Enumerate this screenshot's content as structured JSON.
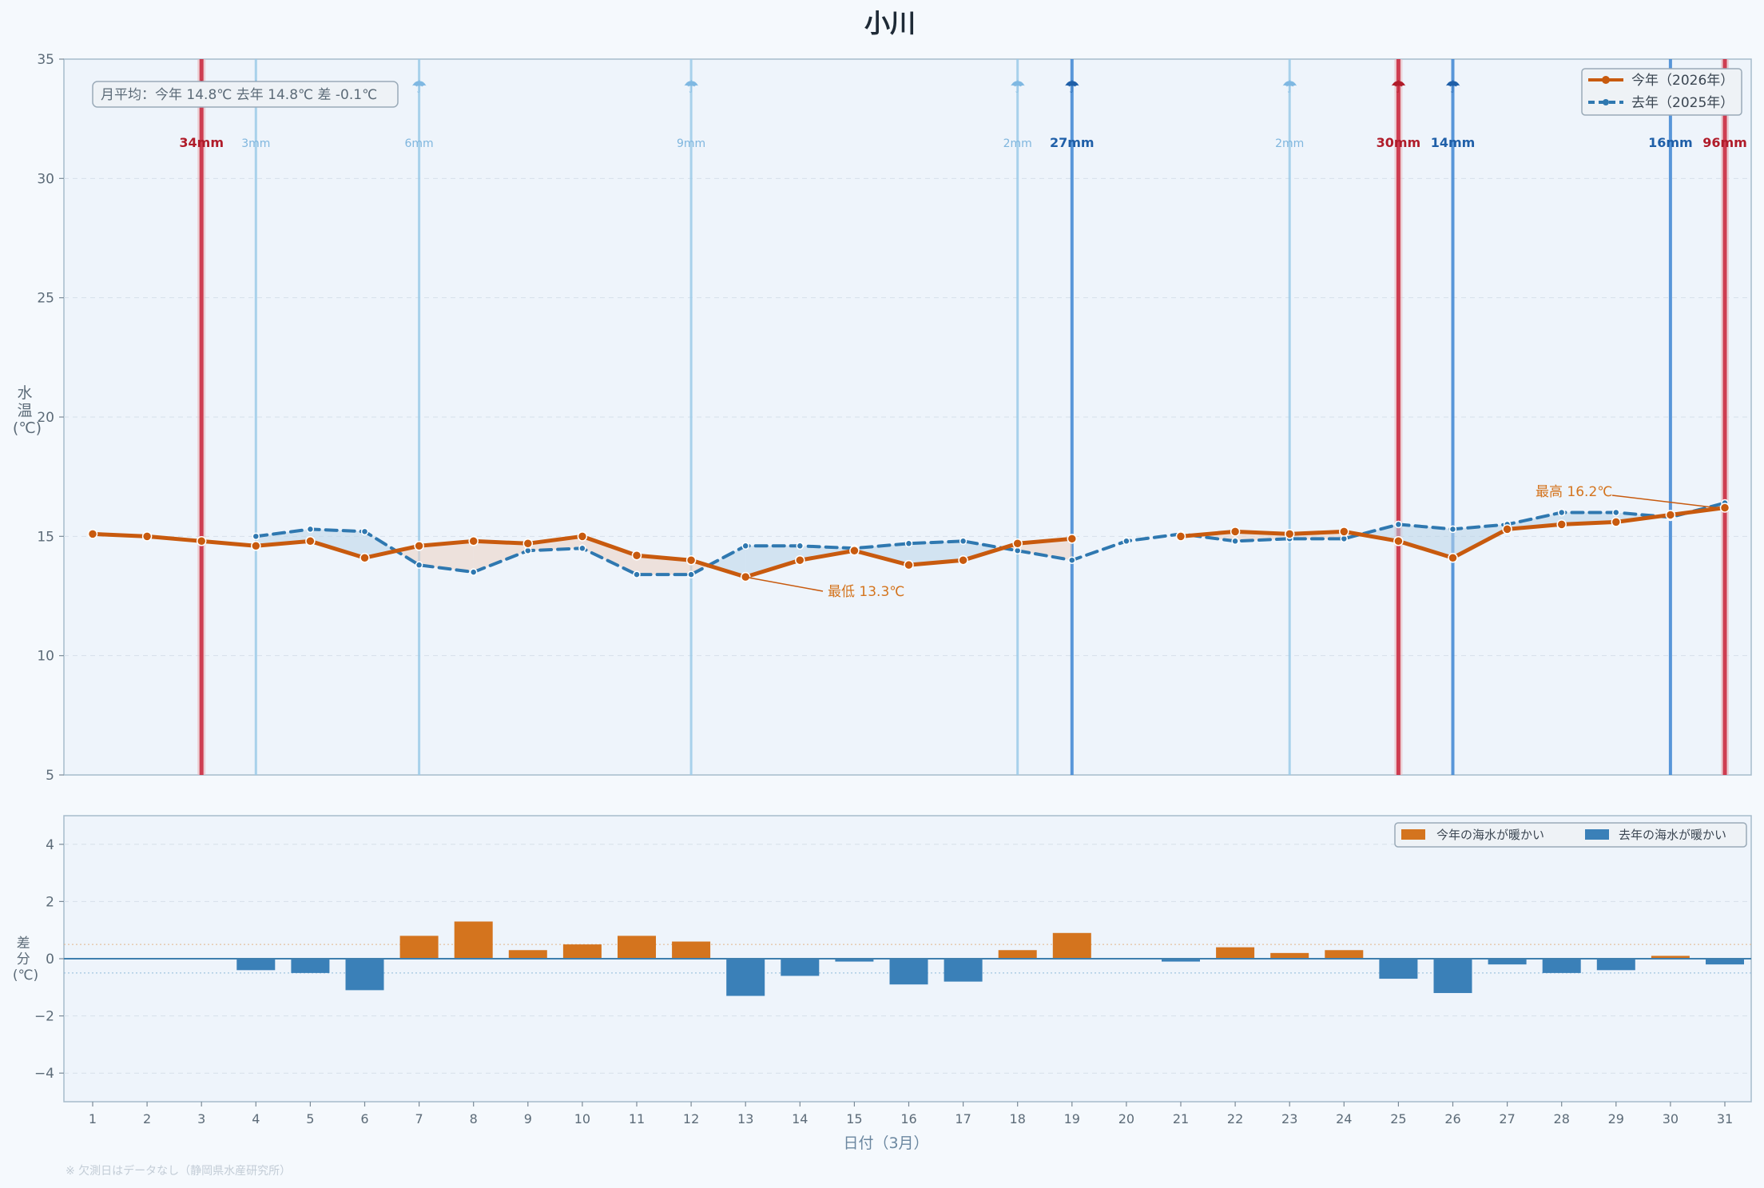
{
  "chart_data": [
    {
      "type": "line",
      "title": "小川",
      "ylabel": "水温(℃)",
      "ylim": [
        5,
        35
      ],
      "yticks": [
        5,
        10,
        15,
        20,
        25,
        30,
        35
      ],
      "x": [
        1,
        2,
        3,
        4,
        5,
        6,
        7,
        8,
        9,
        10,
        11,
        12,
        13,
        14,
        15,
        16,
        17,
        18,
        19,
        20,
        21,
        22,
        23,
        24,
        25,
        26,
        27,
        28,
        29,
        30,
        31
      ],
      "series": [
        {
          "name": "今年（2026年）",
          "color": "#c85a0e",
          "values": [
            15.1,
            15.0,
            14.8,
            14.6,
            14.8,
            14.1,
            14.6,
            14.8,
            14.7,
            15.0,
            14.2,
            14.0,
            13.3,
            14.0,
            14.4,
            13.8,
            14.0,
            14.7,
            14.9,
            null,
            15.0,
            15.2,
            15.1,
            15.2,
            14.8,
            14.1,
            15.3,
            15.5,
            15.6,
            15.9,
            16.2
          ]
        },
        {
          "name": "去年（2025年）",
          "color": "#2f78b0",
          "values": [
            null,
            null,
            null,
            15.0,
            15.3,
            15.2,
            13.8,
            13.5,
            14.4,
            14.5,
            13.4,
            13.4,
            14.6,
            14.6,
            14.5,
            14.7,
            14.8,
            14.4,
            14.0,
            14.8,
            15.1,
            14.8,
            14.9,
            14.9,
            15.5,
            15.3,
            15.5,
            16.0,
            16.0,
            15.8,
            16.4
          ]
        }
      ],
      "rain_events": [
        {
          "day": 3,
          "label": "34mm",
          "year": "今年",
          "heavy": true
        },
        {
          "day": 4,
          "label": "3mm",
          "year": "去年",
          "heavy": false
        },
        {
          "day": 7,
          "label": "6mm",
          "year": "去年",
          "heavy": false
        },
        {
          "day": 12,
          "label": "9mm",
          "year": "去年",
          "heavy": false
        },
        {
          "day": 18,
          "label": "2mm",
          "year": "去年",
          "heavy": false
        },
        {
          "day": 19,
          "label": "27mm",
          "year": "去年",
          "heavy": true
        },
        {
          "day": 23,
          "label": "2mm",
          "year": "去年",
          "heavy": false
        },
        {
          "day": 25,
          "label": "30mm",
          "year": "今年",
          "heavy": true
        },
        {
          "day": 26,
          "label": "14mm",
          "year": "去年",
          "heavy": true
        },
        {
          "day": 30,
          "label": "16mm",
          "year": "去年",
          "heavy": true
        },
        {
          "day": 31,
          "label": "96mm",
          "year": "今年",
          "heavy": true
        }
      ],
      "annotations": {
        "min": {
          "day": 13,
          "text": "最低 13.3℃"
        },
        "max": {
          "day": 31,
          "text": "最高 16.2℃"
        }
      },
      "summary_box": "月平均：今年 14.8℃  去年 14.8℃  差 -0.1℃",
      "legend": [
        "今年（2026年）",
        "去年（2025年）"
      ],
      "legend_position": "top-right",
      "grid": true
    },
    {
      "type": "bar",
      "ylabel": "差分(℃)",
      "ylim": [
        -5,
        5
      ],
      "yticks": [
        -4,
        -2,
        0,
        2,
        4
      ],
      "xlabel": "日付（3月）",
      "categories": [
        1,
        2,
        3,
        4,
        5,
        6,
        7,
        8,
        9,
        10,
        11,
        12,
        13,
        14,
        15,
        16,
        17,
        18,
        19,
        20,
        21,
        22,
        23,
        24,
        25,
        26,
        27,
        28,
        29,
        30,
        31
      ],
      "values": [
        null,
        null,
        null,
        -0.4,
        -0.5,
        -1.1,
        0.8,
        1.3,
        0.3,
        0.5,
        0.8,
        0.6,
        -1.3,
        -0.6,
        -0.1,
        -0.9,
        -0.8,
        0.3,
        0.9,
        null,
        -0.1,
        0.4,
        0.2,
        0.3,
        -0.7,
        -1.2,
        -0.2,
        -0.5,
        -0.4,
        0.1,
        -0.2
      ],
      "positive_label": "今年の海水が暖かい",
      "negative_label": "去年の海水が暖かい",
      "positive_color": "#d4741e",
      "negative_color": "#3a80b8",
      "legend_position": "top-right",
      "reference_lines": [
        0.5,
        -0.5
      ]
    }
  ],
  "footnote": "※ 欠測日はデータなし（静岡県水産研究所）"
}
